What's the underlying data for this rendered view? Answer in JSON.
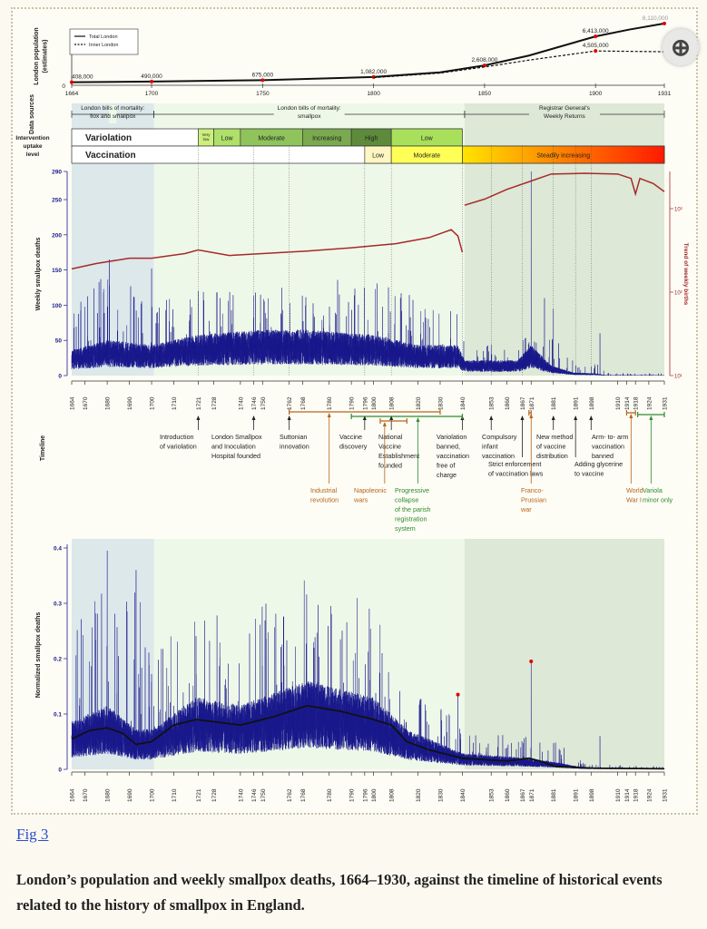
{
  "figure_link": "Fig 3",
  "caption": "London’s population and weekly smallpox deaths, 1664–1930, against the timeline of historical events related to the history of smallpox in England.",
  "zoom_icon": "magnifier-plus-icon",
  "colors": {
    "deaths": "#1a1a8c",
    "births": "#a52a2a",
    "trend": "#111111",
    "peak_dot": "#e00000",
    "brown": "#b5651d",
    "green": "#2e8b2e",
    "period1": "#dce8ea",
    "period2": "#eef8e8",
    "period3": "#dde8d6"
  },
  "chart_data": [
    {
      "type": "line",
      "ylabel": "London population (estimates)",
      "x_ticks": [
        "1664",
        "1700",
        "1750",
        "1800",
        "1850",
        "1900",
        "1931"
      ],
      "y_ticks": [
        "0"
      ],
      "legend": {
        "placement": "top-left",
        "entries": [
          "Total London",
          "Inner London"
        ]
      },
      "series": [
        {
          "name": "Total London",
          "style": "solid",
          "points": [
            [
              1664,
              408000
            ],
            [
              1700,
              490000
            ],
            [
              1750,
              675000
            ],
            [
              1800,
              1082000
            ],
            [
              1830,
              1700000
            ],
            [
              1850,
              2608000
            ],
            [
              1870,
              3900000
            ],
            [
              1900,
              6413000
            ],
            [
              1915,
              7300000
            ],
            [
              1931,
              8110000
            ]
          ],
          "labels": [
            [
              1664,
              "408,000"
            ],
            [
              1700,
              "490,000"
            ],
            [
              1750,
              "675,000"
            ],
            [
              1800,
              "1,082,000"
            ],
            [
              1850,
              "2,608,000"
            ],
            [
              1900,
              "6,413,000"
            ],
            [
              1931,
              "8,110,000"
            ]
          ]
        },
        {
          "name": "Inner London",
          "style": "dashed",
          "points": [
            [
              1800,
              1000000
            ],
            [
              1830,
              1600000
            ],
            [
              1850,
              2400000
            ],
            [
              1870,
              3300000
            ],
            [
              1900,
              4505000
            ],
            [
              1931,
              4400000
            ]
          ],
          "labels": [
            [
              1900,
              "4,505,000"
            ]
          ]
        }
      ]
    },
    {
      "type": "table",
      "data_sources_label": "Data sources",
      "data_sources": [
        {
          "from": 1664,
          "to": 1701,
          "label": "London bills of mortality: flox and smallpox"
        },
        {
          "from": 1701,
          "to": 1841,
          "label": "London bills of mortality: smallpox"
        },
        {
          "from": 1841,
          "to": 1931,
          "label": "Registrar General's Weekly Returns"
        }
      ],
      "uptake_label": "Intervention uptake level",
      "rows": [
        {
          "name": "Variolation",
          "cells": [
            {
              "from": 1721,
              "to": 1728,
              "label": "Very low",
              "color": "#cdef7d"
            },
            {
              "from": 1728,
              "to": 1740,
              "label": "Low",
              "color": "#aee06a"
            },
            {
              "from": 1740,
              "to": 1768,
              "label": "Moderate",
              "color": "#8fc35b"
            },
            {
              "from": 1768,
              "to": 1790,
              "label": "Increasing",
              "color": "#7aa94f"
            },
            {
              "from": 1790,
              "to": 1808,
              "label": "High",
              "color": "#5d8b3b"
            },
            {
              "from": 1808,
              "to": 1840,
              "label": "Low",
              "color": "#a8e05c"
            }
          ]
        },
        {
          "name": "Vaccination",
          "cells": [
            {
              "from": 1796,
              "to": 1808,
              "label": "Low",
              "color": "#fff6c2"
            },
            {
              "from": 1808,
              "to": 1840,
              "label": "Moderate",
              "color": "#ffff55"
            },
            {
              "from": 1840,
              "to": 1931,
              "label": "Steadily increasing",
              "color": "gradient:#ffe000-#ff2000"
            }
          ]
        }
      ]
    },
    {
      "type": "line",
      "ylabel": "Weekly smallpox deaths",
      "y2label": "Trend of weekly births",
      "ylim": [
        0,
        290
      ],
      "y_ticks": [
        "0",
        "50",
        "100",
        "150",
        "200",
        "250",
        "290"
      ],
      "y2_scale": "log",
      "y2_ticks": [
        "10¹",
        "10²",
        "10³"
      ],
      "y2lim": [
        10,
        3000
      ],
      "weekly_deaths_envelope": [
        [
          1664,
          25,
          90
        ],
        [
          1680,
          35,
          150
        ],
        [
          1700,
          30,
          110
        ],
        [
          1720,
          40,
          120
        ],
        [
          1750,
          45,
          125
        ],
        [
          1770,
          45,
          135
        ],
        [
          1800,
          40,
          140
        ],
        [
          1820,
          30,
          110
        ],
        [
          1838,
          30,
          90
        ],
        [
          1841,
          15,
          45
        ],
        [
          1865,
          15,
          50
        ],
        [
          1871,
          30,
          60
        ],
        [
          1880,
          10,
          60
        ],
        [
          1890,
          3,
          20
        ],
        [
          1900,
          2,
          20
        ],
        [
          1905,
          0.3,
          4
        ],
        [
          1931,
          0.2,
          3
        ]
      ],
      "weekly_deaths_peaks": [
        [
          1681,
          165
        ],
        [
          1700,
          152
        ],
        [
          1871,
          290
        ],
        [
          1877,
          110
        ],
        [
          1881,
          95
        ],
        [
          1902,
          60
        ]
      ],
      "births_trend": [
        [
          1664,
          190
        ],
        [
          1675,
          220
        ],
        [
          1690,
          255
        ],
        [
          1700,
          255
        ],
        [
          1715,
          290
        ],
        [
          1721,
          320
        ],
        [
          1735,
          275
        ],
        [
          1750,
          290
        ],
        [
          1770,
          310
        ],
        [
          1790,
          340
        ],
        [
          1810,
          380
        ],
        [
          1825,
          450
        ],
        [
          1835,
          560
        ],
        [
          1838,
          470
        ],
        [
          1840,
          300
        ],
        [
          1841,
          1100
        ],
        [
          1850,
          1300
        ],
        [
          1860,
          1700
        ],
        [
          1870,
          2100
        ],
        [
          1880,
          2600
        ],
        [
          1895,
          2650
        ],
        [
          1910,
          2600
        ],
        [
          1916,
          2300
        ],
        [
          1918,
          1500
        ],
        [
          1920,
          2300
        ],
        [
          1926,
          2000
        ],
        [
          1931,
          1600
        ]
      ]
    },
    {
      "type": "table",
      "timeline_label": "Timeline",
      "ticks": [
        "1664",
        "1670",
        "1680",
        "1690",
        "1700",
        "1710",
        "1721",
        "1728",
        "1740",
        "1746",
        "1750",
        "1762",
        "1768",
        "1780",
        "1790",
        "1796",
        "1800",
        "1808",
        "1820",
        "1830",
        "1840",
        "1853",
        "1860",
        "1867",
        "1871",
        "1881",
        "1891",
        "1898",
        "1910",
        "1914",
        "1918",
        "1924",
        "1931"
      ],
      "events": [
        {
          "year": 1721,
          "label": "Introduction\nof variolation",
          "kind": "event"
        },
        {
          "year": 1746,
          "label": "London Smallpox\nand Inoculation\nHospital founded",
          "kind": "event"
        },
        {
          "year": 1762,
          "label": "Suttonian\ninnovation",
          "kind": "event"
        },
        {
          "year": 1796,
          "label": "Vaccine\ndiscovery",
          "kind": "event"
        },
        {
          "year": 1808,
          "label": "National\nVaccine\nEstablishment\nfounded",
          "kind": "event"
        },
        {
          "year": 1840,
          "label": "Variolation\nbanned,\nvaccination\nfree of\ncharge",
          "kind": "event"
        },
        {
          "year": 1853,
          "label": "Compulsory\ninfant\nvaccination",
          "kind": "event"
        },
        {
          "year": 1867,
          "label": "Strict enforcement\nof vaccination laws",
          "kind": "event"
        },
        {
          "year": 1881,
          "label": "New method\nof vaccine\ndistribution",
          "kind": "event"
        },
        {
          "year": 1891,
          "label": "Adding glycerine\nto vaccine",
          "kind": "event"
        },
        {
          "year": 1898,
          "label": "Arm- to- arm\nvaccination\nbanned",
          "kind": "event"
        },
        {
          "from": 1762,
          "to": 1830,
          "year": 1780,
          "label": "Industrial\nrevolution",
          "kind": "brown"
        },
        {
          "from": 1803,
          "to": 1815,
          "year": 1805,
          "label": "Napoleonic\nwars",
          "kind": "brown"
        },
        {
          "from": 1790,
          "to": 1840,
          "year": 1820,
          "label": "Progressive\ncollapse\nof the parish\nregistration\nsystem",
          "kind": "green"
        },
        {
          "from": 1870,
          "to": 1871,
          "year": 1871,
          "label": "Franco-\nPrussian\nwar",
          "kind": "brown"
        },
        {
          "from": 1914,
          "to": 1918,
          "year": 1916,
          "label": "World\nWar I",
          "kind": "brown"
        },
        {
          "from": 1919,
          "to": 1931,
          "year": 1925,
          "label": "Variola\nminor only",
          "kind": "green"
        }
      ]
    },
    {
      "type": "line",
      "ylabel": "Normalized smallpox deaths",
      "ylim": [
        0,
        0.4
      ],
      "y_ticks": [
        "0",
        "0.1",
        "0.2",
        "0.3",
        "0.4"
      ],
      "x_ticks": [
        "1664",
        "1670",
        "1680",
        "1690",
        "1700",
        "1710",
        "1721",
        "1728",
        "1740",
        "1746",
        "1750",
        "1762",
        "1768",
        "1780",
        "1790",
        "1796",
        "1800",
        "1808",
        "1820",
        "1830",
        "1840",
        "1853",
        "1860",
        "1867",
        "1871",
        "1881",
        "1891",
        "1898",
        "1910",
        "1914",
        "1918",
        "1924",
        "1931"
      ],
      "normalized_envelope": [
        [
          1664,
          0.06,
          0.25
        ],
        [
          1680,
          0.08,
          0.39
        ],
        [
          1693,
          0.05,
          0.35
        ],
        [
          1700,
          0.05,
          0.2
        ],
        [
          1720,
          0.09,
          0.3
        ],
        [
          1740,
          0.08,
          0.27
        ],
        [
          1770,
          0.11,
          0.35
        ],
        [
          1800,
          0.09,
          0.3
        ],
        [
          1815,
          0.05,
          0.2
        ],
        [
          1840,
          0.02,
          0.07
        ],
        [
          1865,
          0.015,
          0.06
        ],
        [
          1880,
          0.01,
          0.06
        ],
        [
          1895,
          0.002,
          0.01
        ],
        [
          1931,
          0.001,
          0.005
        ]
      ],
      "normalized_peaks": [
        [
          1680,
          0.395
        ],
        [
          1693,
          0.36
        ],
        [
          1838,
          0.135
        ],
        [
          1871,
          0.195
        ],
        [
          1902,
          0.06
        ]
      ],
      "trend": [
        [
          1664,
          0.055
        ],
        [
          1672,
          0.07
        ],
        [
          1680,
          0.075
        ],
        [
          1687,
          0.065
        ],
        [
          1693,
          0.045
        ],
        [
          1700,
          0.05
        ],
        [
          1710,
          0.08
        ],
        [
          1720,
          0.09
        ],
        [
          1730,
          0.085
        ],
        [
          1740,
          0.08
        ],
        [
          1755,
          0.095
        ],
        [
          1770,
          0.115
        ],
        [
          1785,
          0.105
        ],
        [
          1800,
          0.09
        ],
        [
          1808,
          0.08
        ],
        [
          1815,
          0.05
        ],
        [
          1825,
          0.035
        ],
        [
          1840,
          0.02
        ],
        [
          1860,
          0.015
        ],
        [
          1870,
          0.02
        ],
        [
          1875,
          0.015
        ],
        [
          1882,
          0.005
        ],
        [
          1900,
          0.002
        ],
        [
          1931,
          0.001
        ]
      ],
      "highlighted_points": [
        [
          1838,
          0.135
        ],
        [
          1871,
          0.195
        ]
      ]
    }
  ]
}
